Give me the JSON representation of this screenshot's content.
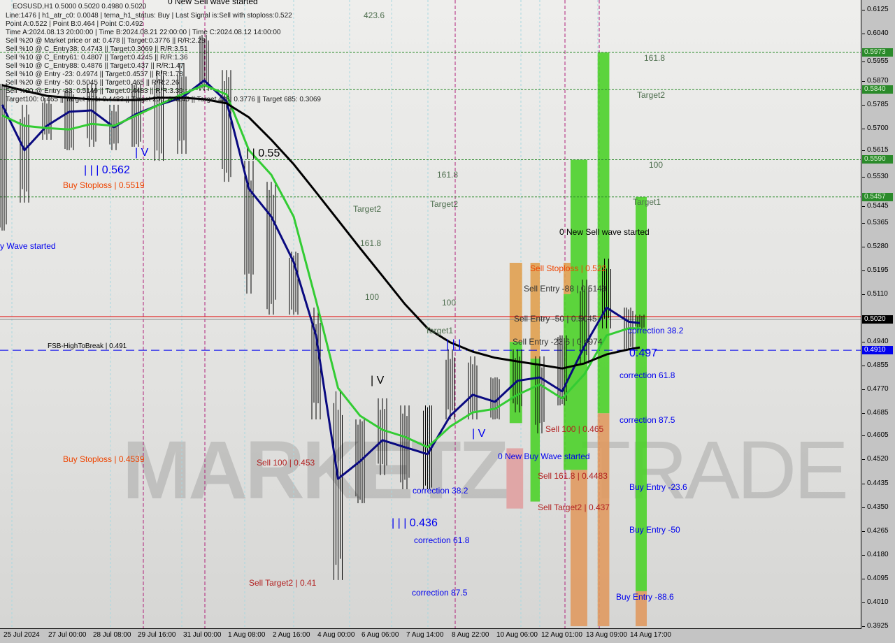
{
  "info": {
    "title": "EOSUSD,H1  0.5000 0.5020 0.4980 0.5020",
    "lines": [
      "Line:1476 | h1_atr_c0: 0.0048 | tema_h1_status: Buy | Last Signal is:Sell with stoploss:0.522",
      "Point A:0.522 | Point B:0.464 | Point C:0.492",
      "Time A:2024.08.13 20:00:00 | Time B:2024.08.21 22:00:00 | Time C:2024.08.12 14:00:00",
      "Sell %20 @ Market price or at: 0.478 || Target:0.3776 || R/R:2.28",
      "Sell %10 @ C_Entry38: 0.4743 || Target:0.3069 || R/R:3.51",
      "Sell %10 @ C_Entry61: 0.4807 || Target:0.4245 || R/R:1.36",
      "Sell %10 @ C_Entry88: 0.4876 || Target:0.437 || R/R:1.47",
      "Sell %10 @ Entry -23: 0.4974 || Target:0.4537 || R/R:1.78",
      "Sell %20 @ Entry -50: 0.5045 || Target:0.465 || R/R:2.26",
      "Sell %20 @ Entry -88: 0.5149 || Target:0.4483 || R/R:3.36",
      "Target100: 0.465 || Target 161: 0.4483 || Target 250: 0.4245 || Target 423: 0.3776 || Target 685: 0.3069"
    ]
  },
  "watermark": {
    "left": "MARKETZ",
    "right": "TRADE"
  },
  "annotations": [
    "0 New Sell wave started",
    "423.6",
    "161.8",
    "Target2",
    "100",
    "Target1",
    "161.8",
    "Target2",
    "Target2",
    "161.8",
    "100",
    "100",
    "Target1",
    "| | | 0.562",
    "Buy Stoploss | 0.5519",
    "| V",
    "| | 0.55",
    "y Wave started",
    "FSB-HighToBreak | 0.491",
    "| V",
    "| V",
    "| | |",
    "Buy Stoploss | 0.4539",
    "Sell 100 | 0.453",
    "correction 38.2",
    "| | | 0.436",
    "correction 61.8",
    "correction 87.5",
    "Sell Target2 | 0.41",
    "0 New Sell wave started",
    "Sell Stoploss | 0.522",
    "Sell Entry -88 | 0.5149",
    "Sell Entry -50 | 0.5045",
    "Sell Entry -23.6 | 0.4974",
    "0.497",
    "correction 38.2",
    "correction 61.8",
    "correction 87.5",
    "Sell 100 | 0.465",
    "0 New Buy Wave started",
    "Sell 161.8 | 0.4483",
    "Sell Target2 | 0.437",
    "Buy Entry -23.6",
    "Buy Entry -50",
    "Buy Entry -88.6"
  ],
  "chart_data": {
    "type": "candlestick",
    "symbol": "EOSUSD",
    "timeframe": "H1",
    "ylim": [
      0.3925,
      0.6125
    ],
    "y_ticks": [
      "0.6125",
      "0.6040",
      "0.5955",
      "0.5870",
      "0.5785",
      "0.5700",
      "0.5615",
      "0.5530",
      "0.5445",
      "0.5365",
      "0.5280",
      "0.5195",
      "0.5110",
      "0.4940",
      "0.4855",
      "0.4770",
      "0.4685",
      "0.4605",
      "0.4520",
      "0.4435",
      "0.4350",
      "0.4265",
      "0.4180",
      "0.4095",
      "0.4010",
      "0.3925"
    ],
    "x_ticks": [
      {
        "label": "25 Jul 2024",
        "t": "2024-07-25 00:00"
      },
      {
        "label": "27 Jul 00:00",
        "t": "2024-07-27 00:00"
      },
      {
        "label": "28 Jul 08:00",
        "t": "2024-07-28 08:00"
      },
      {
        "label": "29 Jul 16:00",
        "t": "2024-07-29 16:00"
      },
      {
        "label": "31 Jul 00:00",
        "t": "2024-07-31 00:00"
      },
      {
        "label": "1 Aug 08:00",
        "t": "2024-08-01 08:00"
      },
      {
        "label": "2 Aug 16:00",
        "t": "2024-08-02 16:00"
      },
      {
        "label": "4 Aug 00:00",
        "t": "2024-08-04 00:00"
      },
      {
        "label": "6 Aug 06:00",
        "t": "2024-08-06 06:00"
      },
      {
        "label": "7 Aug 14:00",
        "t": "2024-08-07 14:00"
      },
      {
        "label": "8 Aug 22:00",
        "t": "2024-08-08 22:00"
      },
      {
        "label": "10 Aug 06:00",
        "t": "2024-08-10 06:00"
      },
      {
        "label": "12 Aug 01:00",
        "t": "2024-08-12 01:00"
      },
      {
        "label": "13 Aug 09:00",
        "t": "2024-08-13 09:00"
      },
      {
        "label": "14 Aug 17:00",
        "t": "2024-08-14 17:00"
      }
    ],
    "times": [
      "2024-07-25 00:00",
      "2024-07-26 00:00",
      "2024-07-27 00:00",
      "2024-07-27 16:00",
      "2024-07-28 08:00",
      "2024-07-29 00:00",
      "2024-07-29 16:00",
      "2024-07-30 08:00",
      "2024-07-31 00:00",
      "2024-07-31 16:00",
      "2024-08-01 08:00",
      "2024-08-02 00:00",
      "2024-08-02 16:00",
      "2024-08-03 08:00",
      "2024-08-04 00:00",
      "2024-08-05 03:00",
      "2024-08-06 06:00",
      "2024-08-06 22:00",
      "2024-08-07 14:00",
      "2024-08-08 06:00",
      "2024-08-08 22:00",
      "2024-08-09 14:00",
      "2024-08-10 06:00",
      "2024-08-11 03:30",
      "2024-08-12 01:00",
      "2024-08-12 17:00",
      "2024-08-13 09:00",
      "2024-08-14 01:00",
      "2024-08-14 17:00",
      "2024-08-15 01:00"
    ],
    "high": [
      0.5861,
      0.5786,
      0.5811,
      0.5836,
      0.5861,
      0.5786,
      0.5861,
      0.591,
      0.5935,
      0.6035,
      0.591,
      0.5586,
      0.5511,
      0.5262,
      0.5062,
      0.4763,
      0.4663,
      0.4738,
      0.4713,
      0.4713,
      0.4913,
      0.4888,
      0.4813,
      0.4913,
      0.4888,
      0.4963,
      0.5162,
      0.5237,
      0.5062,
      0.5037
    ],
    "low": [
      0.5337,
      0.5437,
      0.5661,
      0.5624,
      0.5636,
      0.5624,
      0.5636,
      0.5586,
      0.5611,
      0.5836,
      0.5511,
      0.5112,
      0.5037,
      0.5037,
      0.4663,
      0.409,
      0.4364,
      0.4464,
      0.4414,
      0.4414,
      0.4663,
      0.4663,
      0.4663,
      0.4688,
      0.4613,
      0.4713,
      0.4863,
      0.4988,
      0.4913,
      0.4988
    ],
    "series": [
      {
        "color": "#0a0a80",
        "values": [
          0.5786,
          0.5624,
          0.5711,
          0.5761,
          0.5766,
          0.5706,
          0.5753,
          0.5786,
          0.5811,
          0.5873,
          0.5798,
          0.5486,
          0.5387,
          0.5225,
          0.4963,
          0.4451,
          0.4514,
          0.4589,
          0.4564,
          0.4539,
          0.4676,
          0.4751,
          0.4726,
          0.4801,
          0.4813,
          0.4763,
          0.4925,
          0.5062,
          0.5012,
          0.5007
        ]
      },
      {
        "color": "#33cc33",
        "values": [
          0.5748,
          0.5711,
          0.5703,
          0.5698,
          0.5718,
          0.5711,
          0.5748,
          0.5786,
          0.5823,
          0.5856,
          0.5823,
          0.5624,
          0.5536,
          0.5387,
          0.5087,
          0.4775,
          0.4676,
          0.4626,
          0.4601,
          0.4564,
          0.4638,
          0.4688,
          0.4701,
          0.4751,
          0.4788,
          0.4738,
          0.4825,
          0.4963,
          0.4988,
          0.4988
        ]
      },
      {
        "color": "#000000",
        "values": [
          0.5856,
          0.5836,
          0.5818,
          0.5811,
          0.5806,
          0.5803,
          0.5803,
          0.5811,
          0.5811,
          0.5806,
          0.5791,
          0.5741,
          0.5661,
          0.5574,
          0.5474,
          0.5374,
          0.5274,
          0.5175,
          0.5075,
          0.4988,
          0.4938,
          0.4905,
          0.4883,
          0.487,
          0.4858,
          0.4845,
          0.4863,
          0.4895,
          0.4913,
          0.492
        ]
      }
    ],
    "levels": [
      {
        "price": "0.5973",
        "color": "#2a8a2a",
        "style": "dotted"
      },
      {
        "price": "0.5840",
        "color": "#2a8a2a",
        "style": "dotted"
      },
      {
        "price": "0.5590",
        "color": "#2a8a2a",
        "style": "dotted"
      },
      {
        "price": "0.5457",
        "color": "#2a8a2a",
        "style": "dotted"
      },
      {
        "price": "0.5020",
        "color": "#000000",
        "style": "solid"
      },
      {
        "price": "0.4910",
        "color": "#0000ee",
        "style": "dashed"
      }
    ],
    "zones": [
      {
        "t0": "2024-08-10 20:00",
        "t1": "2024-08-11 08:00",
        "segments": [
          {
            "from": 0.5222,
            "to": 0.494,
            "color": "#e0a050"
          },
          {
            "from": 0.494,
            "to": 0.465,
            "color": "#4cd12a"
          }
        ]
      },
      {
        "t0": "2024-08-11 16:00",
        "t1": "2024-08-12 01:00",
        "segments": [
          {
            "from": 0.5222,
            "to": 0.488,
            "color": "#e0a050"
          },
          {
            "from": 0.488,
            "to": 0.437,
            "color": "#4cd12a"
          }
        ]
      },
      {
        "t0": "2024-08-12 18:00",
        "t1": "2024-08-12 23:00",
        "segments": [
          {
            "from": 0.5222,
            "to": 0.511,
            "color": "#e0a050"
          },
          {
            "from": 0.511,
            "to": 0.4483,
            "color": "#4cd12a"
          }
        ]
      },
      {
        "t0": "2024-08-12 23:00",
        "t1": "2024-08-13 11:00",
        "segments": [
          {
            "from": 0.559,
            "to": 0.4483,
            "color": "#4cd12a"
          },
          {
            "from": 0.4483,
            "to": 0.3925,
            "color": "#e09a60"
          }
        ]
      },
      {
        "t0": "2024-08-13 18:30",
        "t1": "2024-08-14 03:00",
        "segments": [
          {
            "from": 0.5973,
            "to": 0.4685,
            "color": "#4cd12a"
          },
          {
            "from": 0.4685,
            "to": 0.3925,
            "color": "#e09a60"
          }
        ]
      },
      {
        "t0": "2024-08-14 22:00",
        "t1": "2024-08-15 06:00",
        "segments": [
          {
            "from": 0.5457,
            "to": 0.405,
            "color": "#4cd12a"
          },
          {
            "from": 0.405,
            "to": 0.3925,
            "color": "#e09a60"
          }
        ]
      },
      {
        "t0": "2024-08-10 17:00",
        "t1": "2024-08-11 09:00",
        "segments": [
          {
            "from": 0.456,
            "to": 0.4345,
            "color": "#e0a0a0"
          }
        ]
      }
    ],
    "current_price": "0.5020"
  }
}
